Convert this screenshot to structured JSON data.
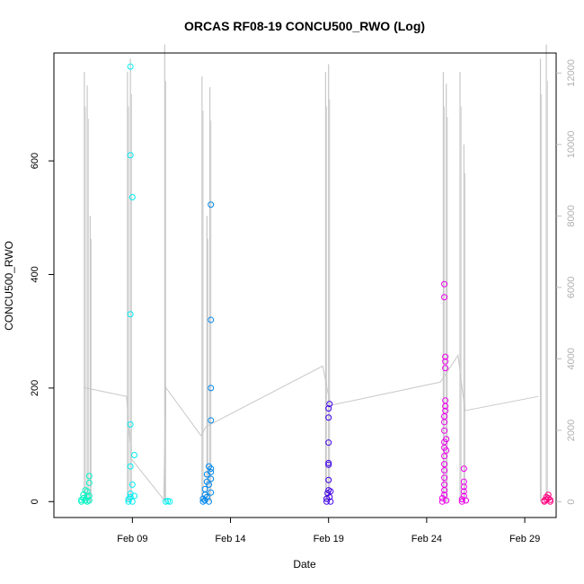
{
  "chart_data": {
    "type": "scatter",
    "title": "ORCAS RF08-19 CONCU500_RWO (Log)",
    "xlabel": "Date",
    "ylabel": "CONCU500_RWO",
    "x_ticks": [
      "Feb 09",
      "Feb 14",
      "Feb 19",
      "Feb 24",
      "Feb 29"
    ],
    "x_tick_days": [
      9,
      14,
      19,
      24,
      29
    ],
    "xlim_days": [
      5.0,
      30.6
    ],
    "y_ticks": [
      0,
      200,
      400,
      600
    ],
    "ylim": [
      -28,
      790
    ],
    "y2_ticks": [
      0,
      2000,
      4000,
      6000,
      8000,
      10000,
      12000
    ],
    "y2lim": [
      -440,
      12560
    ],
    "y2_color": "#c0c0c0",
    "grid": false,
    "series": [
      {
        "color": "#00f5c3",
        "points": [
          [
            6.4,
            0
          ],
          [
            6.4,
            3
          ],
          [
            6.5,
            6
          ],
          [
            6.5,
            12
          ],
          [
            6.6,
            2
          ],
          [
            6.6,
            20
          ],
          [
            6.7,
            9
          ],
          [
            6.7,
            18
          ],
          [
            6.8,
            33
          ],
          [
            6.8,
            45
          ],
          [
            6.7,
            0
          ],
          [
            6.8,
            2
          ],
          [
            6.8,
            10
          ]
        ]
      },
      {
        "color": "#00eef2",
        "points": [
          [
            8.8,
            0
          ],
          [
            8.8,
            4
          ],
          [
            8.9,
            8
          ],
          [
            8.9,
            14
          ],
          [
            8.9,
            62
          ],
          [
            8.9,
            136
          ],
          [
            8.9,
            330
          ],
          [
            8.9,
            610
          ],
          [
            9.0,
            536
          ],
          [
            8.9,
            766
          ],
          [
            9.0,
            30
          ],
          [
            9.1,
            82
          ],
          [
            9.0,
            0
          ],
          [
            9.1,
            10
          ],
          [
            10.7,
            0
          ],
          [
            10.8,
            1
          ],
          [
            10.9,
            0
          ]
        ]
      },
      {
        "color": "#0088ee",
        "points": [
          [
            12.6,
            0
          ],
          [
            12.6,
            5
          ],
          [
            12.7,
            12
          ],
          [
            12.7,
            22
          ],
          [
            12.8,
            35
          ],
          [
            12.8,
            48
          ],
          [
            12.9,
            62
          ],
          [
            12.9,
            30
          ],
          [
            13.0,
            40
          ],
          [
            13.0,
            52
          ],
          [
            13.0,
            58
          ],
          [
            12.7,
            2
          ],
          [
            12.8,
            8
          ],
          [
            12.9,
            0
          ],
          [
            13.0,
            16
          ],
          [
            13.0,
            143
          ],
          [
            13.0,
            200
          ],
          [
            13.0,
            320
          ],
          [
            13.0,
            523
          ]
        ]
      },
      {
        "color": "#4000e8",
        "points": [
          [
            18.9,
            0
          ],
          [
            18.9,
            5
          ],
          [
            18.95,
            15
          ],
          [
            19.0,
            20
          ],
          [
            19.0,
            38
          ],
          [
            19.0,
            68
          ],
          [
            19.0,
            104
          ],
          [
            19.0,
            148
          ],
          [
            19.0,
            164
          ],
          [
            19.05,
            172
          ],
          [
            19.0,
            65
          ],
          [
            19.05,
            8
          ],
          [
            19.1,
            0
          ],
          [
            19.1,
            18
          ]
        ]
      },
      {
        "color": "#ee00ee",
        "points": [
          [
            24.8,
            0
          ],
          [
            24.8,
            6
          ],
          [
            24.9,
            12
          ],
          [
            24.9,
            20
          ],
          [
            24.9,
            30
          ],
          [
            24.9,
            42
          ],
          [
            24.9,
            55
          ],
          [
            24.9,
            66
          ],
          [
            24.9,
            80
          ],
          [
            24.9,
            95
          ],
          [
            24.9,
            105
          ],
          [
            24.9,
            125
          ],
          [
            24.9,
            140
          ],
          [
            24.9,
            150
          ],
          [
            24.95,
            160
          ],
          [
            24.95,
            168
          ],
          [
            24.95,
            178
          ],
          [
            24.95,
            235
          ],
          [
            24.95,
            247
          ],
          [
            24.95,
            255
          ],
          [
            24.9,
            360
          ],
          [
            24.9,
            383
          ],
          [
            25.0,
            2
          ],
          [
            25.0,
            90
          ],
          [
            25.0,
            110
          ],
          [
            25.8,
            0
          ],
          [
            25.8,
            4
          ],
          [
            25.9,
            10
          ],
          [
            25.9,
            18
          ],
          [
            25.9,
            26
          ],
          [
            25.9,
            35
          ],
          [
            25.9,
            58
          ],
          [
            26.0,
            2
          ]
        ]
      },
      {
        "color": "#ff007f",
        "points": [
          [
            30.0,
            0
          ],
          [
            30.0,
            2
          ],
          [
            30.1,
            4
          ],
          [
            30.1,
            8
          ],
          [
            30.2,
            12
          ],
          [
            30.2,
            6
          ],
          [
            30.3,
            0
          ],
          [
            30.3,
            3
          ]
        ]
      }
    ],
    "y2_line": {
      "color": "#c8c8c8",
      "spikes": [
        {
          "day": 6.55,
          "max": 12030
        },
        {
          "day": 6.7,
          "max": 11650
        },
        {
          "day": 6.85,
          "max": 8000
        },
        {
          "day": 8.75,
          "max": 12030
        },
        {
          "day": 8.9,
          "max": 12400
        },
        {
          "day": 10.65,
          "max": 12800
        },
        {
          "day": 12.55,
          "max": 11900
        },
        {
          "day": 12.8,
          "max": 8000
        },
        {
          "day": 12.95,
          "max": 11600
        },
        {
          "day": 18.85,
          "max": 12030
        },
        {
          "day": 19.0,
          "max": 12250
        },
        {
          "day": 24.85,
          "max": 12030
        },
        {
          "day": 25.0,
          "max": 11700
        },
        {
          "day": 25.7,
          "max": 12030
        },
        {
          "day": 25.9,
          "max": 10000
        },
        {
          "day": 29.8,
          "max": 12400
        },
        {
          "day": 30.1,
          "max": 12800
        }
      ],
      "baseline": [
        [
          6.5,
          3200
        ],
        [
          8.7,
          2950
        ],
        [
          8.95,
          1200
        ],
        [
          10.6,
          60
        ],
        [
          10.7,
          3200
        ],
        [
          12.5,
          1850
        ],
        [
          12.75,
          2100
        ],
        [
          18.7,
          3800
        ],
        [
          19.1,
          2700
        ],
        [
          24.7,
          3350
        ],
        [
          25.6,
          4100
        ],
        [
          25.95,
          2550
        ],
        [
          29.7,
          2950
        ]
      ]
    }
  }
}
